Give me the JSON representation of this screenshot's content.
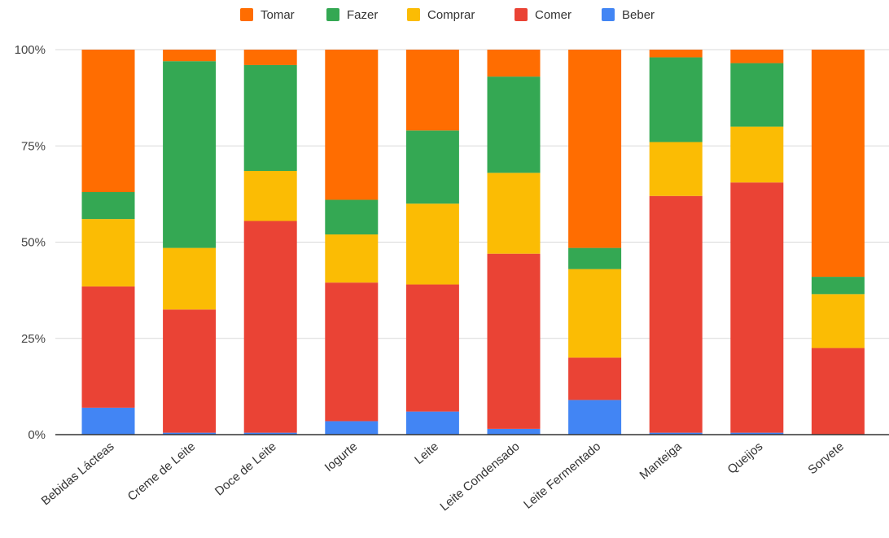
{
  "chart_data": {
    "type": "bar",
    "stacked": true,
    "percent": true,
    "categories": [
      "Bebidas Lácteas",
      "Creme de Leite",
      "Doce de Leite",
      "Iogurte",
      "Leite",
      "Leite Condensado",
      "Leite Fermentado",
      "Manteiga",
      "Queijos",
      "Sorvete"
    ],
    "series": [
      {
        "name": "Beber",
        "color": "#4285f4",
        "values": [
          7,
          0.5,
          0.5,
          3.5,
          6,
          1.5,
          9,
          0.5,
          0.5,
          0
        ]
      },
      {
        "name": "Comer",
        "color": "#ea4335",
        "values": [
          31.5,
          32,
          55,
          36,
          33,
          45.5,
          11,
          61.5,
          65,
          22.5
        ]
      },
      {
        "name": "Comprar",
        "color": "#fbbc04",
        "values": [
          17.5,
          16,
          13,
          12.5,
          21,
          21,
          23,
          14,
          14.5,
          14
        ]
      },
      {
        "name": "Fazer",
        "color": "#34a853",
        "values": [
          7,
          48.5,
          27.5,
          9,
          19,
          25,
          5.5,
          22,
          16.5,
          4.5
        ]
      },
      {
        "name": "Tomar",
        "color": "#ff6d01",
        "values": [
          37,
          3,
          4,
          39,
          21,
          7,
          51.5,
          2,
          3.5,
          59
        ]
      }
    ],
    "legend_order": [
      "Tomar",
      "Fazer",
      "Comprar",
      "Comer",
      "Beber"
    ],
    "legend_position": "top",
    "yticks": [
      "0%",
      "25%",
      "50%",
      "75%",
      "100%"
    ],
    "ylim": [
      0,
      100
    ],
    "grid": true,
    "title": "",
    "xlabel": "",
    "ylabel": ""
  }
}
